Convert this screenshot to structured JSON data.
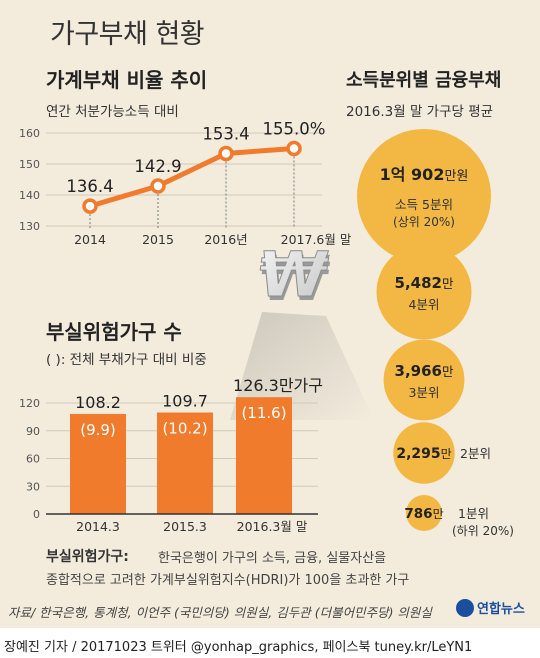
{
  "title": "가구부채 현황",
  "footer_credit": "장예진 기자 / 20171023 트위터 @yonhap_graphics, 페이스북 tuney.kr/LeYN1",
  "source": "자료/ 한국은행, 통계청, 이언주 (국민의당) 의원실, 김두관 (더불어민주당) 의원실",
  "logo_text": "연합뉴스",
  "colors": {
    "accent": "#f07b2c",
    "circle_fill": "#f3b744",
    "background": "#f3ecdd"
  },
  "icon": "won-symbol-3d",
  "definition": {
    "title": "부실위험가구:",
    "line1": "한국은행이 가구의 소득, 금융, 실물자산을",
    "line2": "종합적으로 고려한 가계부실위험지수(HDRI)가 100을 초과한 가구"
  },
  "chart_data": [
    {
      "type": "line",
      "title": "가계부채 비율 추이",
      "subtitle": "연간 처분가능소득 대비",
      "categories": [
        "2014",
        "2015",
        "2016년",
        "2017.6월 말"
      ],
      "values": [
        136.4,
        142.9,
        153.4,
        155.0
      ],
      "value_labels": [
        "136.4",
        "142.9",
        "153.4",
        "155.0%"
      ],
      "yticks": [
        "160",
        "150",
        "140",
        "130"
      ],
      "ylim": [
        130,
        160
      ],
      "grid": true
    },
    {
      "type": "bar",
      "title": "부실위험가구 수",
      "subtitle": "( ): 전체 부채가구 대비 비중",
      "categories": [
        "2014.3",
        "2015.3",
        "2016.3월 말"
      ],
      "values": [
        108.2,
        109.7,
        126.3
      ],
      "value_labels": [
        "108.2",
        "109.7",
        "126.3만가구"
      ],
      "shares": [
        "(9.9)",
        "(10.2)",
        "(11.6)"
      ],
      "yticks": [
        "120",
        "90",
        "60",
        "30",
        "0"
      ],
      "ylim": [
        0,
        120
      ],
      "grid": true
    },
    {
      "type": "bubble",
      "title": "소득분위별 금융부채",
      "subtitle": "2016.3월 말 가구당 평균",
      "values": [
        10902,
        5482,
        3966,
        2295,
        786
      ],
      "items": [
        {
          "value_label": "1억 902",
          "unit": "만원",
          "quintile": "소득 5분위",
          "note": "(상위 20%)"
        },
        {
          "value_label": "5,482",
          "unit": "만",
          "quintile": "4분위",
          "note": ""
        },
        {
          "value_label": "3,966",
          "unit": "만",
          "quintile": "3분위",
          "note": ""
        },
        {
          "value_label": "2,295",
          "unit": "만",
          "quintile": "2분위",
          "note": ""
        },
        {
          "value_label": "786",
          "unit": "만",
          "quintile": "1분위",
          "note": "(하위 20%)"
        }
      ]
    }
  ]
}
